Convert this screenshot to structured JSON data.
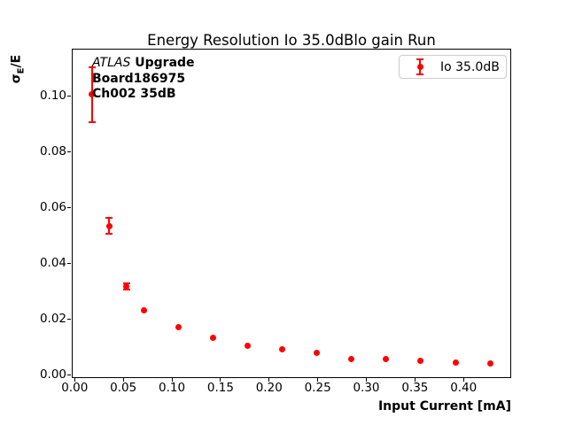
{
  "title": "Energy Resolution Io 35.0dBlo gain Run",
  "x_axis_label": "Input Current [mA]",
  "y_axis_label": {
    "sigma": "σ",
    "sub": "E",
    "rest": "/E"
  },
  "annotation": {
    "line1_italic": "ATLAS",
    "line1_bold": " Upgrade",
    "line2": "Board186975",
    "line3": "Ch002 35dB"
  },
  "legend": {
    "label": "Io 35.0dB",
    "marker": "red-errorbar-point"
  },
  "colors": {
    "series": "#ff0000",
    "grid": "#b0b0b0",
    "text": "#000000",
    "legend_border": "#cccccc",
    "background": "#ffffff"
  },
  "chart_data": {
    "type": "scatter",
    "title": "Energy Resolution Io 35.0dBlo gain Run",
    "xlabel": "Input Current [mA]",
    "ylabel": "σE/E",
    "series": [
      {
        "name": "Io 35.0dB",
        "marker": "circle",
        "color": "#ff0000",
        "x": [
          0.0178,
          0.0356,
          0.0534,
          0.0712,
          0.1068,
          0.1424,
          0.178,
          0.2136,
          0.2492,
          0.2848,
          0.3204,
          0.356,
          0.3916,
          0.4272
        ],
        "y": [
          0.1005,
          0.0533,
          0.0316,
          0.023,
          0.0171,
          0.0131,
          0.0103,
          0.0092,
          0.0077,
          0.0055,
          0.0057,
          0.0049,
          0.0044,
          0.0039
        ],
        "yerr": [
          0.0098,
          0.0029,
          0.0012,
          0,
          0,
          0,
          0,
          0,
          0,
          0,
          0,
          0,
          0,
          0
        ]
      }
    ],
    "xlim": [
      -0.003,
      0.449
    ],
    "ylim": [
      -0.0012,
      0.1169
    ],
    "xticks": [
      0.0,
      0.05,
      0.1,
      0.15,
      0.2,
      0.25,
      0.3,
      0.35,
      0.4
    ],
    "xtick_labels": [
      "0.00",
      "0.05",
      "0.10",
      "0.15",
      "0.20",
      "0.25",
      "0.30",
      "0.35",
      "0.40"
    ],
    "yticks": [
      0.0,
      0.02,
      0.04,
      0.06,
      0.08,
      0.1
    ],
    "ytick_labels": [
      "0.00",
      "0.02",
      "0.04",
      "0.06",
      "0.08",
      "0.10"
    ],
    "grid": true,
    "legend_position": "upper right"
  }
}
